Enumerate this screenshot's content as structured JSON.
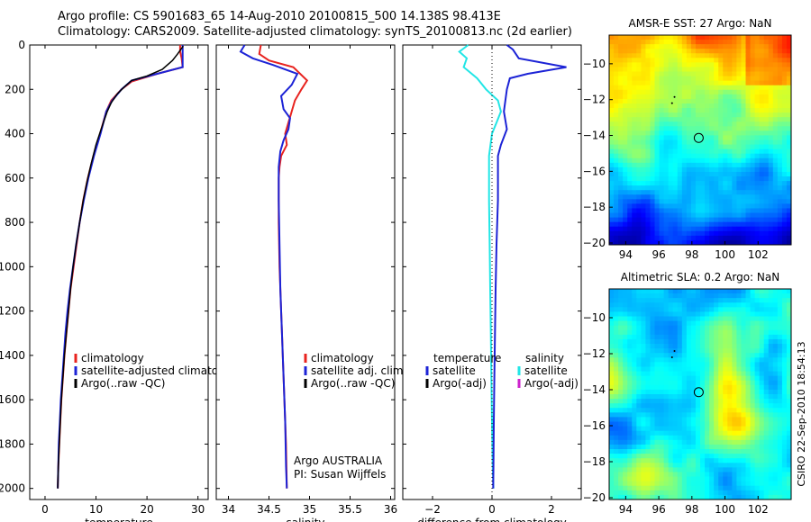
{
  "header": {
    "line1": "Argo profile: CS 5901683_65 14-Aug-2010 20100815_500 14.138S 98.413E",
    "line2": "Climatology: CARS2009. Satellite-adjusted climatology: synTS_20100813.nc (2d earlier)"
  },
  "side_text": "CSIRO 22-Sep-2010 18:54:13",
  "colors": {
    "climatology": "#e8231f",
    "satellite": "#1c23d6",
    "argo": "#000000",
    "satellite_salinity_diff": "#22e6e6",
    "argo_salinity_diff": "#cc22cc"
  },
  "chart_data": [
    {
      "type": "line",
      "id": "temperature",
      "xlabel": "temperature",
      "xlim": [
        -3,
        32
      ],
      "ylim": [
        2050,
        0
      ],
      "xticks": [
        0,
        10,
        20,
        30
      ],
      "yticks": [
        0,
        200,
        400,
        600,
        800,
        1000,
        1200,
        1400,
        1600,
        1800,
        2000
      ],
      "legend": [
        "climatology",
        "satellite-adjusted climatology",
        "Argo(..raw -QC)"
      ],
      "series": [
        {
          "name": "climatology",
          "color": "#e8231f",
          "points": [
            [
              26.5,
              0
            ],
            [
              26.5,
              30
            ],
            [
              26.8,
              60
            ],
            [
              27,
              100
            ],
            [
              22,
              130
            ],
            [
              17,
              165
            ],
            [
              15,
              200
            ],
            [
              13,
              250
            ],
            [
              12,
              300
            ],
            [
              10.8,
              400
            ],
            [
              9.5,
              500
            ],
            [
              8.4,
              600
            ],
            [
              7.5,
              700
            ],
            [
              6.8,
              800
            ],
            [
              6.2,
              900
            ],
            [
              5.6,
              1000
            ],
            [
              5,
              1100
            ],
            [
              4.6,
              1200
            ],
            [
              4.2,
              1300
            ],
            [
              3.8,
              1400
            ],
            [
              3.5,
              1500
            ],
            [
              3.2,
              1600
            ],
            [
              3,
              1700
            ],
            [
              2.8,
              1800
            ],
            [
              2.6,
              1900
            ],
            [
              2.5,
              2000
            ]
          ]
        },
        {
          "name": "satellite-adjusted climatology",
          "color": "#1c23d6",
          "points": [
            [
              27,
              0
            ],
            [
              27,
              40
            ],
            [
              27,
              100
            ],
            [
              22,
              130
            ],
            [
              17,
              160
            ],
            [
              15,
              200
            ],
            [
              13.2,
              250
            ],
            [
              12,
              300
            ],
            [
              10.9,
              400
            ],
            [
              9.6,
              500
            ],
            [
              8.5,
              600
            ],
            [
              7.6,
              700
            ],
            [
              6.8,
              800
            ],
            [
              6.1,
              900
            ],
            [
              5.5,
              1000
            ],
            [
              4.9,
              1100
            ],
            [
              4.4,
              1200
            ],
            [
              4,
              1300
            ],
            [
              3.7,
              1400
            ],
            [
              3.4,
              1500
            ],
            [
              3.1,
              1600
            ],
            [
              2.9,
              1700
            ],
            [
              2.7,
              1800
            ],
            [
              2.6,
              1900
            ],
            [
              2.5,
              2000
            ]
          ]
        },
        {
          "name": "Argo(..raw -QC)",
          "color": "#000000",
          "points": [
            [
              27.1,
              5
            ],
            [
              26,
              40
            ],
            [
              25,
              70
            ],
            [
              23,
              110
            ],
            [
              20,
              140
            ],
            [
              17,
              160
            ],
            [
              15.5,
              190
            ],
            [
              14.2,
              220
            ],
            [
              13,
              260
            ],
            [
              12.2,
              300
            ],
            [
              11,
              380
            ],
            [
              10,
              450
            ],
            [
              9,
              540
            ],
            [
              8.2,
              620
            ],
            [
              7.5,
              700
            ],
            [
              6.8,
              800
            ],
            [
              6.1,
              900
            ],
            [
              5.5,
              1000
            ],
            [
              5,
              1100
            ],
            [
              4.6,
              1200
            ],
            [
              4.2,
              1300
            ],
            [
              3.8,
              1400
            ],
            [
              3.5,
              1500
            ],
            [
              3.2,
              1600
            ],
            [
              3,
              1700
            ],
            [
              2.8,
              1800
            ],
            [
              2.6,
              1900
            ],
            [
              2.5,
              2000
            ]
          ]
        }
      ]
    },
    {
      "type": "line",
      "id": "salinity",
      "xlabel": "salinity",
      "xlim": [
        33.85,
        36.05
      ],
      "ylim": [
        2050,
        0
      ],
      "xticks": [
        34,
        34.5,
        35,
        35.5,
        36
      ],
      "legend": [
        "climatology",
        "satellite adj. clim.",
        "Argo(..raw -QC)"
      ],
      "annotation": [
        "Argo AUSTRALIA",
        "PI: Susan Wijffels"
      ],
      "series": [
        {
          "name": "climatology",
          "color": "#e8231f",
          "points": [
            [
              34.4,
              0
            ],
            [
              34.38,
              40
            ],
            [
              34.5,
              70
            ],
            [
              34.8,
              100
            ],
            [
              34.97,
              160
            ],
            [
              34.9,
              200
            ],
            [
              34.82,
              250
            ],
            [
              34.78,
              300
            ],
            [
              34.74,
              350
            ],
            [
              34.7,
              400
            ],
            [
              34.72,
              450
            ],
            [
              34.65,
              500
            ],
            [
              34.63,
              550
            ],
            [
              34.62,
              600
            ],
            [
              34.62,
              800
            ],
            [
              34.63,
              1000
            ],
            [
              34.65,
              1200
            ],
            [
              34.67,
              1400
            ],
            [
              34.69,
              1600
            ],
            [
              34.71,
              1800
            ],
            [
              34.72,
              2000
            ]
          ]
        },
        {
          "name": "satellite adj. clim.",
          "color": "#1c23d6",
          "points": [
            [
              34.2,
              0
            ],
            [
              34.15,
              30
            ],
            [
              34.3,
              60
            ],
            [
              34.55,
              90
            ],
            [
              34.85,
              130
            ],
            [
              34.78,
              180
            ],
            [
              34.65,
              230
            ],
            [
              34.68,
              290
            ],
            [
              34.76,
              330
            ],
            [
              34.74,
              380
            ],
            [
              34.68,
              430
            ],
            [
              34.64,
              480
            ],
            [
              34.62,
              550
            ],
            [
              34.62,
              700
            ],
            [
              34.63,
              900
            ],
            [
              34.64,
              1100
            ],
            [
              34.66,
              1300
            ],
            [
              34.68,
              1500
            ],
            [
              34.7,
              1700
            ],
            [
              34.71,
              1900
            ],
            [
              34.72,
              2000
            ]
          ]
        }
      ]
    },
    {
      "type": "line",
      "id": "difference",
      "xlabel": "difference from climatology",
      "xlim": [
        -3,
        3
      ],
      "ylim": [
        2050,
        0
      ],
      "xticks": [
        -2,
        0,
        2
      ],
      "legend_left_title": "temperature",
      "legend_right_title": "salinity",
      "legend_left": [
        "satellite",
        "Argo(-adj)"
      ],
      "legend_right": [
        "satellite",
        "Argo(-adj)"
      ],
      "series": [
        {
          "name": "salinity satellite",
          "color": "#22e6e6",
          "points": [
            [
              -0.8,
              0
            ],
            [
              -1.1,
              30
            ],
            [
              -0.85,
              60
            ],
            [
              -0.95,
              100
            ],
            [
              -0.5,
              150
            ],
            [
              -0.2,
              200
            ],
            [
              0.2,
              250
            ],
            [
              0.3,
              300
            ],
            [
              0.15,
              350
            ],
            [
              0,
              400
            ],
            [
              -0.1,
              500
            ],
            [
              -0.1,
              700
            ],
            [
              -0.08,
              900
            ],
            [
              -0.06,
              1100
            ],
            [
              -0.04,
              1300
            ],
            [
              -0.02,
              1500
            ],
            [
              0,
              1700
            ],
            [
              0.02,
              1900
            ],
            [
              0.05,
              2000
            ]
          ]
        },
        {
          "name": "temperature satellite",
          "color": "#1c23d6",
          "points": [
            [
              0.5,
              0
            ],
            [
              0.7,
              20
            ],
            [
              0.9,
              60
            ],
            [
              2.5,
              100
            ],
            [
              1.2,
              130
            ],
            [
              0.6,
              150
            ],
            [
              0.5,
              200
            ],
            [
              0.4,
              300
            ],
            [
              0.5,
              380
            ],
            [
              0.3,
              450
            ],
            [
              0.2,
              500
            ],
            [
              0.2,
              700
            ],
            [
              0.15,
              900
            ],
            [
              0.12,
              1100
            ],
            [
              0.1,
              1300
            ],
            [
              0.08,
              1500
            ],
            [
              0.06,
              1700
            ],
            [
              0.05,
              1900
            ],
            [
              0.04,
              2000
            ]
          ]
        }
      ]
    },
    {
      "type": "heatmap",
      "id": "sst_map",
      "title": "AMSR-E SST: 27 Argo: NaN",
      "xticks": [
        94,
        96,
        98,
        100,
        102
      ],
      "yticks": [
        -10,
        -12,
        -14,
        -16,
        -18,
        -20
      ],
      "xlim": [
        93,
        104
      ],
      "ylim": [
        -20.1,
        -8.4
      ],
      "marker": [
        98.413,
        -14.138
      ]
    },
    {
      "type": "heatmap",
      "id": "sla_map",
      "title": "Altimetric SLA: 0.2 Argo: NaN",
      "xticks": [
        94,
        96,
        98,
        100,
        102
      ],
      "yticks": [
        -10,
        -12,
        -14,
        -16,
        -18,
        -20
      ],
      "xlim": [
        93,
        104
      ],
      "ylim": [
        -20.1,
        -8.4
      ],
      "marker": [
        98.413,
        -14.138
      ]
    }
  ]
}
